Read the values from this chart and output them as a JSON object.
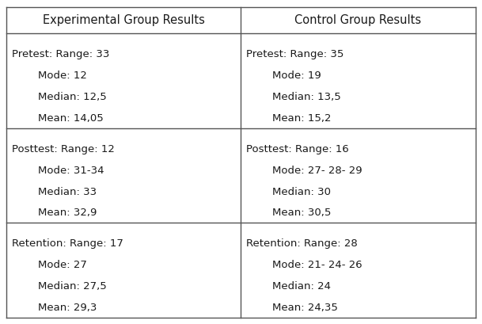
{
  "col_headers": [
    "Experimental Group Results",
    "Control Group Results"
  ],
  "rows": [
    {
      "exp": [
        "Pretest: Range: 33",
        "Mode: 12",
        "Median: 12,5",
        "Mean: 14,05"
      ],
      "ctrl": [
        "Pretest: Range: 35",
        "Mode: 19",
        "Median: 13,5",
        "Mean: 15,2"
      ]
    },
    {
      "exp": [
        "Posttest: Range: 12",
        "Mode: 31-34",
        "Median: 33",
        "Mean: 32,9"
      ],
      "ctrl": [
        "Posttest: Range: 16",
        "Mode: 27- 28- 29",
        "Median: 30",
        "Mean: 30,5"
      ]
    },
    {
      "exp": [
        "Retention: Range: 17",
        "Mode: 27",
        "Median: 27,5",
        "Mean: 29,3"
      ],
      "ctrl": [
        "Retention: Range: 28",
        "Mode: 21- 24- 26",
        "Median: 24",
        "Mean: 24,35"
      ]
    }
  ],
  "header_fontsize": 10.5,
  "cell_fontsize": 9.5,
  "bg_color": "#ffffff",
  "text_color": "#1a1a1a",
  "border_color": "#555555"
}
